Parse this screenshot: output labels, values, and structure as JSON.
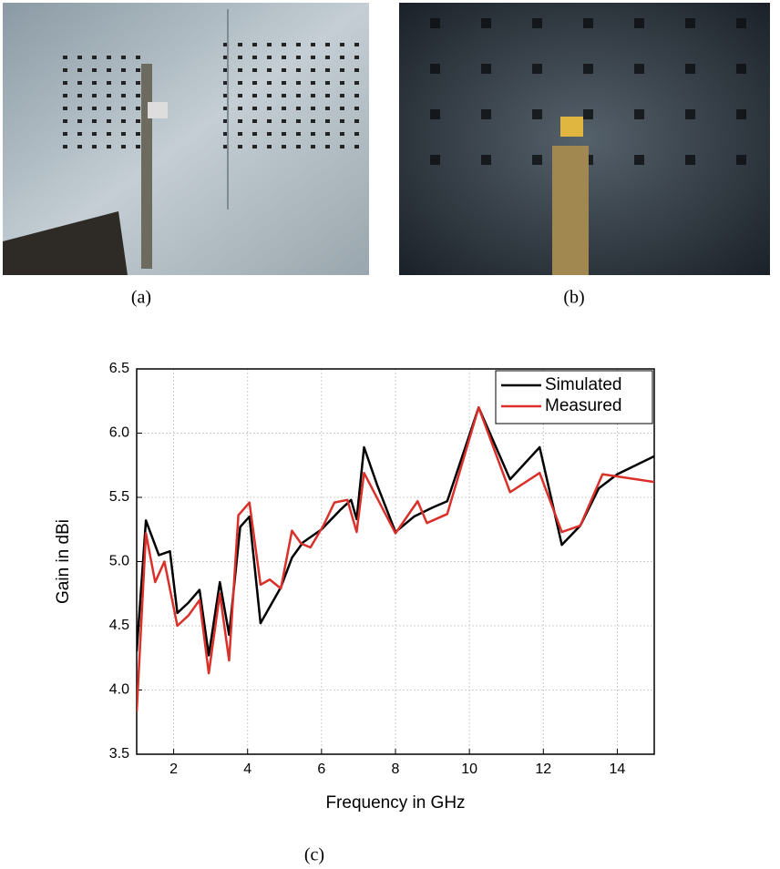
{
  "figure": {
    "captions": [
      "(a)",
      "(b)",
      "(c)"
    ]
  },
  "chart_data": {
    "type": "line",
    "xlabel": "Frequency in GHz",
    "ylabel": "Gain in dBi",
    "xlim": [
      1,
      15
    ],
    "ylim": [
      3.5,
      6.5
    ],
    "xticks": [
      2,
      4,
      6,
      8,
      10,
      12,
      14
    ],
    "yticks": [
      3.5,
      {
        "value": 4,
        "label": "4.0"
      },
      4.5,
      {
        "value": 5,
        "label": "5.0"
      },
      5.5,
      {
        "value": 6,
        "label": "6.0"
      },
      6.5
    ],
    "grid": true,
    "legend": "upper right",
    "series": [
      {
        "name": "Simulated",
        "color": "#000000",
        "x": [
          1,
          1.25,
          1.6,
          1.9,
          2.1,
          2.4,
          2.7,
          2.95,
          3.25,
          3.5,
          3.8,
          4.05,
          4.35,
          4.9,
          5.2,
          5.5,
          6.0,
          6.5,
          6.8,
          6.95,
          7.15,
          7.5,
          8.0,
          8.5,
          9.0,
          9.4,
          10.25,
          11.1,
          11.9,
          12.5,
          13.0,
          13.5,
          14.0,
          15.0
        ],
        "values": [
          4.3,
          5.32,
          5.05,
          5.08,
          4.6,
          4.68,
          4.78,
          4.27,
          4.84,
          4.43,
          5.27,
          5.35,
          4.52,
          4.8,
          5.03,
          5.15,
          5.25,
          5.4,
          5.48,
          5.33,
          5.89,
          5.6,
          5.23,
          5.35,
          5.42,
          5.47,
          6.2,
          5.64,
          5.89,
          5.13,
          5.28,
          5.57,
          5.68,
          5.82
        ]
      },
      {
        "name": "Measured",
        "color": "#d9302a",
        "x": [
          1,
          1.25,
          1.5,
          1.75,
          2.1,
          2.4,
          2.7,
          2.95,
          3.25,
          3.5,
          3.75,
          4.05,
          4.35,
          4.6,
          4.9,
          5.2,
          5.45,
          5.7,
          6.05,
          6.35,
          6.7,
          6.95,
          7.15,
          8.0,
          8.6,
          8.85,
          9.4,
          10.25,
          11.1,
          11.9,
          12.5,
          13.0,
          13.6,
          15.0
        ],
        "values": [
          3.83,
          5.22,
          4.84,
          5.0,
          4.5,
          4.58,
          4.7,
          4.13,
          4.75,
          4.23,
          5.36,
          5.46,
          4.82,
          4.86,
          4.79,
          5.24,
          5.14,
          5.11,
          5.28,
          5.46,
          5.48,
          5.23,
          5.69,
          5.22,
          5.47,
          5.3,
          5.37,
          6.2,
          5.54,
          5.69,
          5.23,
          5.28,
          5.68,
          5.62
        ]
      }
    ]
  }
}
